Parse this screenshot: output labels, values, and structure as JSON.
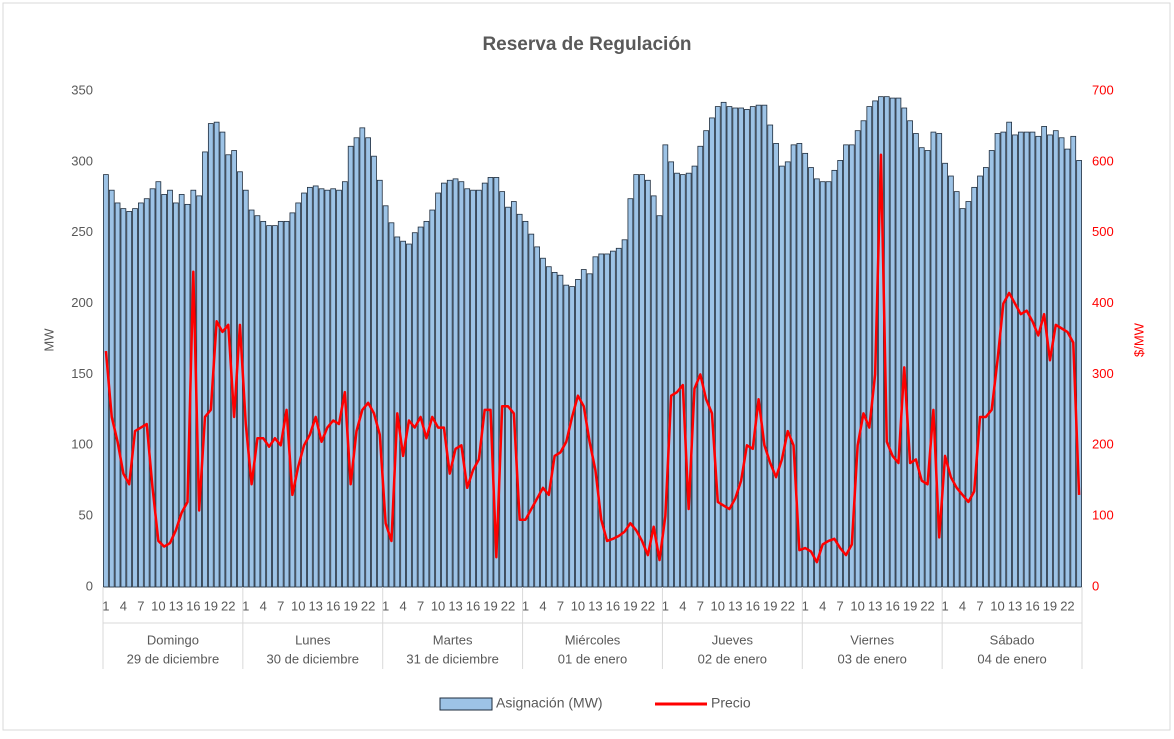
{
  "chart_data": {
    "type": "bar",
    "title": "Reserva de Regulación",
    "y_label": "MW",
    "y2_label": "$/MW",
    "categories": [
      "1",
      null,
      null,
      "4",
      null,
      null,
      "7",
      null,
      null,
      "10",
      null,
      null,
      "13",
      null,
      null,
      "16",
      null,
      null,
      "19",
      null,
      null,
      "22",
      null,
      null,
      "1",
      null,
      null,
      "4",
      null,
      null,
      "7",
      null,
      null,
      "10",
      null,
      null,
      "13",
      null,
      null,
      "16",
      null,
      null,
      "19",
      null,
      null,
      "22",
      null,
      null,
      "1",
      null,
      null,
      "4",
      null,
      null,
      "7",
      null,
      null,
      "10",
      null,
      null,
      "13",
      null,
      null,
      "16",
      null,
      null,
      "19",
      null,
      null,
      "22",
      null,
      null,
      "1",
      null,
      null,
      "4",
      null,
      null,
      "7",
      null,
      null,
      "10",
      null,
      null,
      "13",
      null,
      null,
      "16",
      null,
      null,
      "19",
      null,
      null,
      "22",
      null,
      null,
      "1",
      null,
      null,
      "4",
      null,
      null,
      "7",
      null,
      null,
      "10",
      null,
      null,
      "13",
      null,
      null,
      "16",
      null,
      null,
      "19",
      null,
      null,
      "22",
      null,
      null,
      "1",
      null,
      null,
      "4",
      null,
      null,
      "7",
      null,
      null,
      "10",
      null,
      null,
      "13",
      null,
      null,
      "16",
      null,
      null,
      "19",
      null,
      null,
      "22",
      null,
      null,
      "1",
      null,
      null,
      "4",
      null,
      null,
      "7",
      null,
      null,
      "10",
      null,
      null,
      "13",
      null,
      null,
      "16",
      null,
      null,
      "19",
      null,
      null,
      "22",
      null,
      null
    ],
    "groups": [
      {
        "day": "Domingo",
        "date": "29 de diciembre"
      },
      {
        "day": "Lunes",
        "date": "30 de diciembre"
      },
      {
        "day": "Martes",
        "date": "31 de diciembre"
      },
      {
        "day": "Miércoles",
        "date": "01 de enero"
      },
      {
        "day": "Jueves",
        "date": "02 de enero"
      },
      {
        "day": "Viernes",
        "date": "03 de enero"
      },
      {
        "day": "Sábado",
        "date": "04 de enero"
      }
    ],
    "series": [
      {
        "name": "Asignación (MW)",
        "color": "#9dc3e6",
        "type": "bar",
        "values": [
          291,
          280,
          271,
          267,
          265,
          267,
          271,
          274,
          281,
          286,
          277,
          280,
          271,
          277,
          270,
          280,
          276,
          307,
          327,
          328,
          321,
          305,
          308,
          293,
          280,
          266,
          262,
          258,
          255,
          255,
          258,
          258,
          264,
          271,
          278,
          282,
          283,
          281,
          280,
          281,
          280,
          286,
          311,
          317,
          324,
          317,
          304,
          287,
          269,
          257,
          247,
          244,
          242,
          250,
          254,
          258,
          266,
          278,
          285,
          287,
          288,
          286,
          281,
          280,
          280,
          285,
          289,
          289,
          279,
          268,
          272,
          263,
          258,
          249,
          240,
          232,
          226,
          222,
          220,
          213,
          212,
          217,
          224,
          221,
          233,
          235,
          235,
          237,
          239,
          245,
          274,
          291,
          291,
          287,
          276,
          262,
          312,
          300,
          292,
          291,
          292,
          297,
          311,
          322,
          331,
          339,
          342,
          339,
          338,
          338,
          337,
          339,
          340,
          340,
          326,
          313,
          297,
          300,
          312,
          313,
          306,
          296,
          288,
          286,
          286,
          294,
          301,
          312,
          312,
          322,
          329,
          339,
          343,
          346,
          346,
          345,
          345,
          338,
          329,
          320,
          310,
          308,
          321,
          320,
          299,
          290,
          279,
          267,
          272,
          282,
          290,
          296,
          308,
          320,
          321,
          328,
          319,
          321,
          321,
          321,
          318,
          325,
          319,
          322,
          317,
          309,
          318,
          301
        ]
      },
      {
        "name": "Precio",
        "color": "#ff0000",
        "type": "line",
        "axis": "y2",
        "values": [
          333,
          240,
          205,
          160,
          145,
          220,
          225,
          230,
          140,
          65,
          57,
          62,
          80,
          105,
          120,
          445,
          108,
          240,
          250,
          375,
          360,
          370,
          240,
          370,
          230,
          145,
          210,
          210,
          198,
          210,
          200,
          250,
          130,
          170,
          200,
          215,
          240,
          205,
          225,
          235,
          230,
          275,
          145,
          220,
          250,
          260,
          245,
          215,
          90,
          65,
          245,
          185,
          235,
          225,
          240,
          210,
          240,
          225,
          225,
          160,
          195,
          200,
          140,
          165,
          180,
          250,
          250,
          42,
          255,
          255,
          245,
          95,
          95,
          110,
          125,
          140,
          130,
          185,
          190,
          205,
          240,
          270,
          255,
          205,
          165,
          95,
          65,
          68,
          72,
          78,
          90,
          80,
          65,
          45,
          85,
          38,
          100,
          270,
          275,
          285,
          110,
          280,
          300,
          265,
          245,
          120,
          115,
          110,
          125,
          150,
          200,
          195,
          265,
          200,
          175,
          155,
          180,
          220,
          200,
          52,
          55,
          50,
          35,
          60,
          65,
          68,
          55,
          45,
          60,
          200,
          245,
          225,
          300,
          610,
          205,
          185,
          175,
          310,
          175,
          180,
          150,
          145,
          250,
          70,
          185,
          155,
          140,
          130,
          120,
          135,
          240,
          240,
          250,
          320,
          400,
          415,
          400,
          385,
          390,
          375,
          355,
          385,
          320,
          370,
          365,
          360,
          345,
          130
        ]
      }
    ],
    "ylim": [
      0,
      350
    ],
    "yticks": [
      0,
      50,
      100,
      150,
      200,
      250,
      300,
      350
    ],
    "y2lim": [
      0,
      700
    ],
    "y2ticks": [
      0,
      100,
      200,
      300,
      400,
      500,
      600,
      700
    ],
    "legend": "bottom"
  }
}
